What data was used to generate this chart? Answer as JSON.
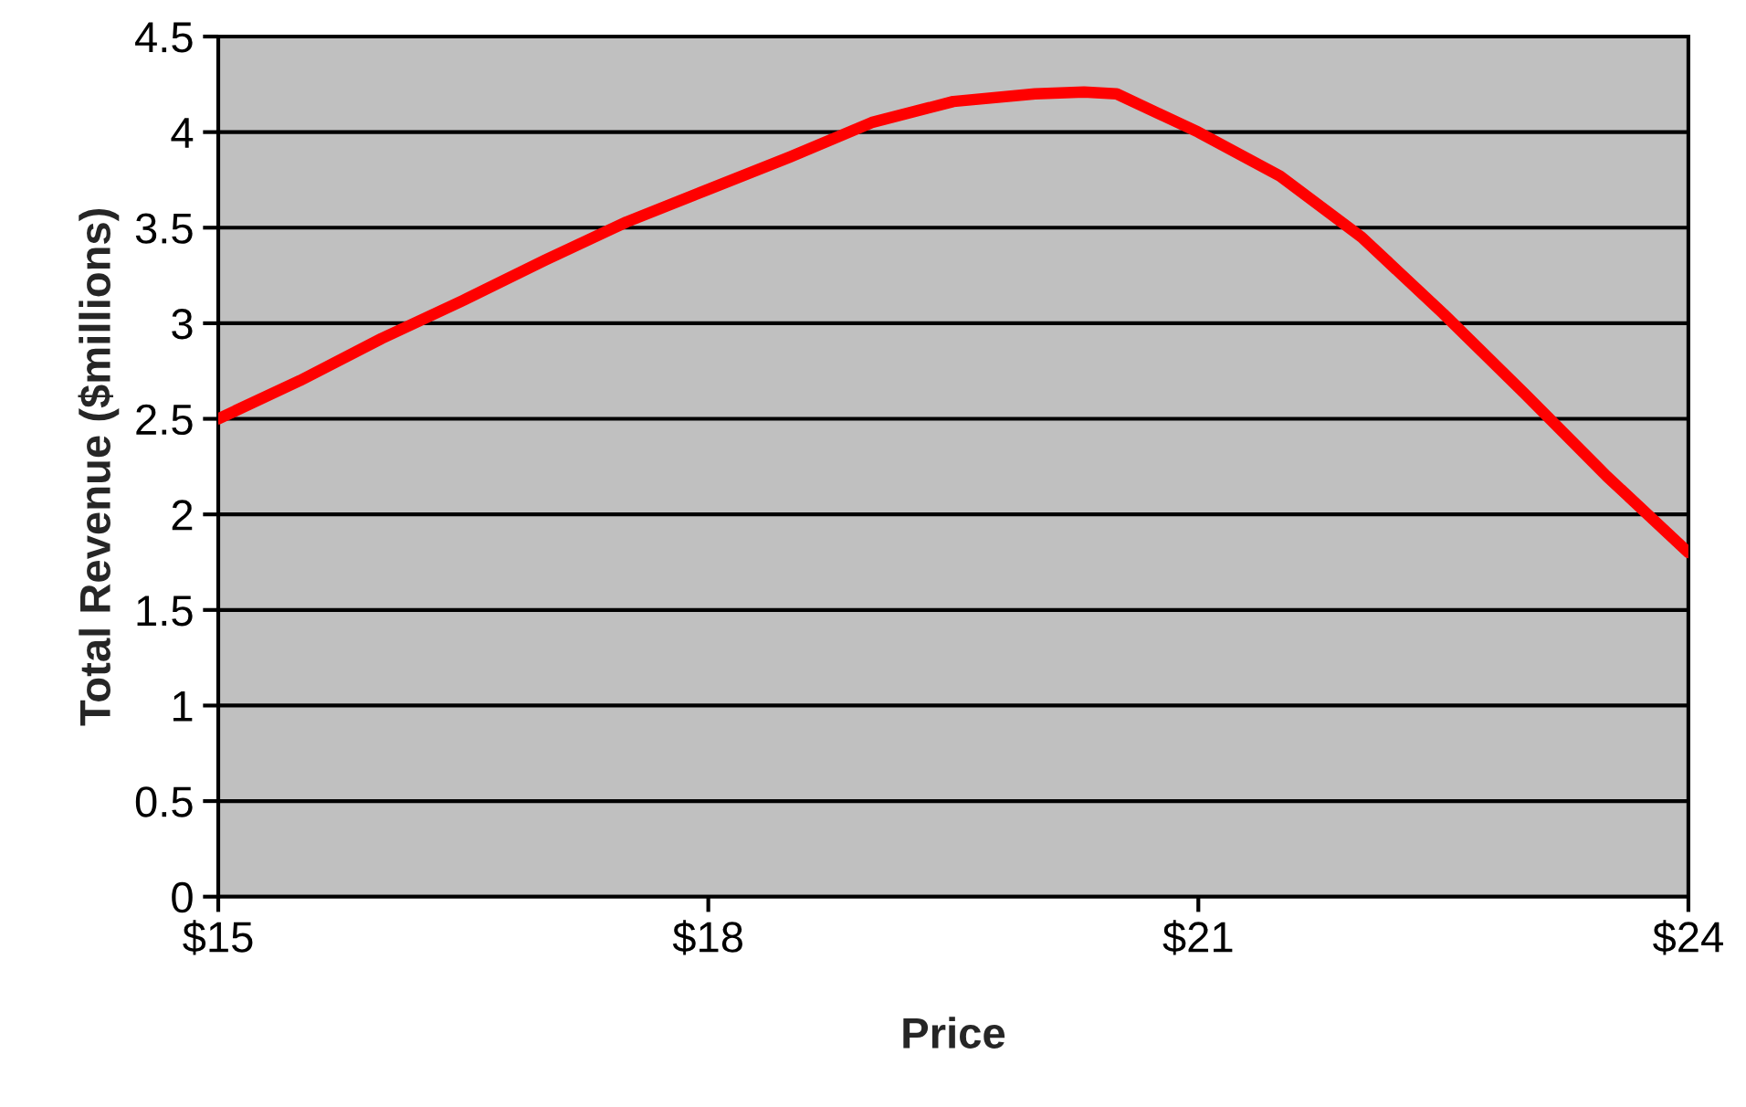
{
  "chart_data": {
    "type": "line",
    "xlabel": "Price",
    "ylabel": "Total Revenue ($millions)",
    "x": [
      15,
      15.5,
      16,
      16.5,
      17,
      17.5,
      18,
      18.5,
      19,
      19.5,
      20,
      20.3,
      20.5,
      21,
      21.5,
      22,
      22.5,
      23,
      23.5,
      24
    ],
    "series": [
      {
        "color": "#ff0000",
        "values": [
          2.5,
          2.7,
          2.92,
          3.12,
          3.33,
          3.53,
          3.7,
          3.87,
          4.05,
          4.16,
          4.2,
          4.21,
          4.2,
          4.0,
          3.77,
          3.45,
          3.05,
          2.63,
          2.2,
          1.8
        ]
      }
    ],
    "xlim": [
      15,
      24
    ],
    "xticks": [
      {
        "value": 15,
        "label": "$15"
      },
      {
        "value": 18,
        "label": "$18"
      },
      {
        "value": 21,
        "label": "$21"
      },
      {
        "value": 24,
        "label": "$24"
      }
    ],
    "ylim": [
      0,
      4.5
    ],
    "yticks": [
      0,
      0.5,
      1,
      1.5,
      2,
      2.5,
      3,
      3.5,
      4,
      4.5
    ],
    "grid": "y",
    "marker": "none",
    "line_style": "solid",
    "legend": false
  }
}
